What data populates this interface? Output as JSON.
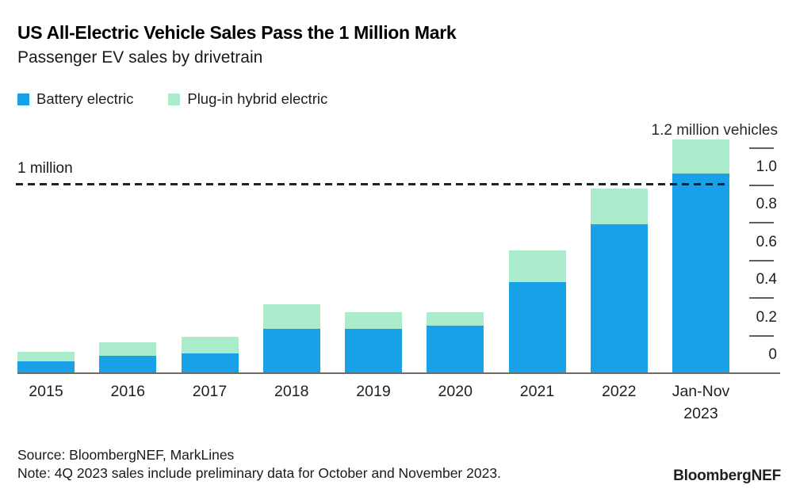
{
  "header": {
    "title": "US All-Electric Vehicle Sales Pass the 1 Million Mark",
    "subtitle": "Passenger EV sales by drivetrain"
  },
  "legend": [
    {
      "label": "Battery electric",
      "color": "#18a1e6"
    },
    {
      "label": "Plug-in hybrid electric",
      "color": "#abeccd"
    }
  ],
  "colors": {
    "battery_electric": "#18a1e6",
    "plug_in_hybrid": "#abeccd",
    "reference_line": "#1e222b",
    "axis_line": "#6e6a66"
  },
  "chart_data": {
    "type": "bar",
    "stacked": true,
    "title": "US All-Electric Vehicle Sales Pass the 1 Million Mark",
    "subtitle": "Passenger EV sales by drivetrain",
    "categories": [
      "2015",
      "2016",
      "2017",
      "2018",
      "2019",
      "2020",
      "2021",
      "2022",
      "Jan-Nov 2023"
    ],
    "series": [
      {
        "name": "Battery electric",
        "values": [
          0.06,
          0.09,
          0.1,
          0.23,
          0.23,
          0.25,
          0.48,
          0.79,
          1.06
        ]
      },
      {
        "name": "Plug-in hybrid electric",
        "values": [
          0.05,
          0.07,
          0.09,
          0.13,
          0.09,
          0.07,
          0.17,
          0.19,
          0.18
        ]
      }
    ],
    "totals": [
      0.11,
      0.16,
      0.19,
      0.36,
      0.32,
      0.32,
      0.65,
      0.98,
      1.24
    ],
    "unit": "million vehicles",
    "ylim": [
      0,
      1.2
    ],
    "grid": false,
    "legend_position": "top-left",
    "axis": {
      "side": "right",
      "tick_values": [
        1.2,
        1.0,
        0.8,
        0.6,
        0.4,
        0.2,
        0
      ],
      "tick_labels": [
        "1.0",
        "0.8",
        "0.6",
        "0.4",
        "0.2",
        "0"
      ]
    },
    "reference_line": {
      "value": 1.0,
      "label": "1 million",
      "style": "dashed"
    },
    "annotation": {
      "label": "1.2 million vehicles",
      "position": "top-right"
    }
  },
  "footer": {
    "source": "Source: BloombergNEF, MarkLines",
    "note": "Note: 4Q 2023 sales include preliminary data for October and November 2023.",
    "brand": "BloombergNEF"
  }
}
